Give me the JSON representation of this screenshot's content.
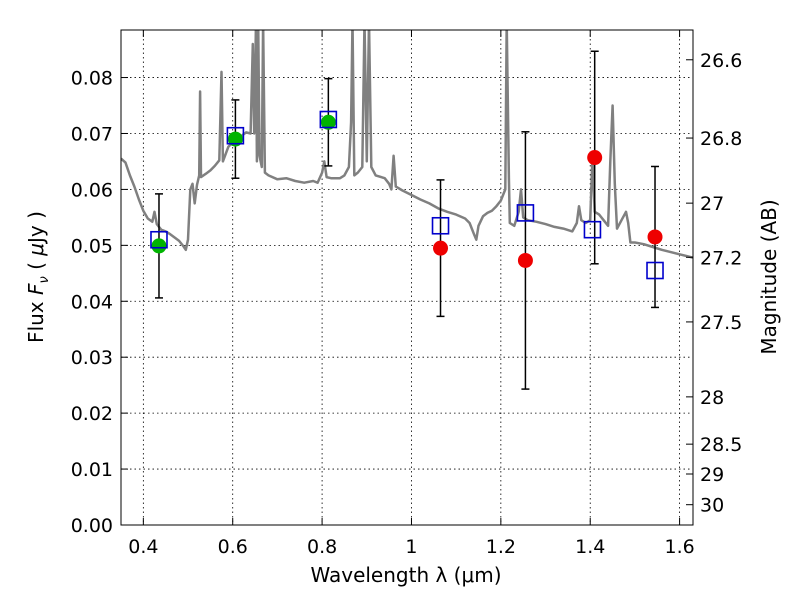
{
  "chart_data": {
    "type": "scatter",
    "title": "",
    "xlabel": "Wavelength  λ (μm)",
    "ylabel": "Flux  F_ν  ( μJy )",
    "ylabel_parts": [
      "Flux  ",
      "F",
      "ν",
      "  ( ",
      "μ",
      "Jy )"
    ],
    "y2label": "Magnitude (AB)",
    "xlim": [
      0.35,
      1.63
    ],
    "ylim": [
      0.0,
      0.0885
    ],
    "x_ticks": [
      "0.4",
      "0.6",
      "0.8",
      "1",
      "1.2",
      "1.4",
      "1.6"
    ],
    "y_ticks": [
      "0.00",
      "0.01",
      "0.02",
      "0.03",
      "0.04",
      "0.05",
      "0.06",
      "0.07",
      "0.08"
    ],
    "y2_ticks": [
      "26.6",
      "26.8",
      "27",
      "27.2",
      "27.5",
      "28",
      "28.5",
      "29",
      "30"
    ],
    "grid": true,
    "colors": {
      "model_line": "#808080",
      "detection_point": "#00b400",
      "upper_limit_point": "#ee0000",
      "model_square": "#0000cc",
      "error_bar": "#000000"
    },
    "series": [
      {
        "marker": "circle",
        "color_key": "detection_point",
        "points": [
          {
            "x": 0.435,
            "y": 0.0499,
            "err": 0.0093
          },
          {
            "x": 0.606,
            "y": 0.069,
            "err": 0.007
          },
          {
            "x": 0.814,
            "y": 0.072,
            "err": 0.0078
          }
        ]
      },
      {
        "marker": "circle",
        "color_key": "upper_limit_point",
        "points": [
          {
            "x": 1.065,
            "y": 0.0495,
            "err": 0.0122
          },
          {
            "x": 1.255,
            "y": 0.0473,
            "err": 0.023
          },
          {
            "x": 1.41,
            "y": 0.0657,
            "err": 0.019
          },
          {
            "x": 1.545,
            "y": 0.0515,
            "err": 0.0126
          }
        ]
      },
      {
        "marker": "square",
        "color_key": "model_square",
        "points": [
          {
            "x": 0.435,
            "y": 0.051
          },
          {
            "x": 0.606,
            "y": 0.0696
          },
          {
            "x": 0.814,
            "y": 0.0725
          },
          {
            "x": 1.065,
            "y": 0.0535
          },
          {
            "x": 1.255,
            "y": 0.0558
          },
          {
            "x": 1.405,
            "y": 0.0528
          },
          {
            "x": 1.545,
            "y": 0.0455
          }
        ]
      },
      {
        "marker": "line",
        "color_key": "model_line",
        "points": [
          [
            0.35,
            0.0655
          ],
          [
            0.36,
            0.0648
          ],
          [
            0.37,
            0.0625
          ],
          [
            0.38,
            0.0605
          ],
          [
            0.39,
            0.0582
          ],
          [
            0.4,
            0.0562
          ],
          [
            0.41,
            0.0548
          ],
          [
            0.42,
            0.0542
          ],
          [
            0.425,
            0.056
          ],
          [
            0.43,
            0.0538
          ],
          [
            0.44,
            0.0528
          ],
          [
            0.45,
            0.0525
          ],
          [
            0.46,
            0.052
          ],
          [
            0.47,
            0.0514
          ],
          [
            0.48,
            0.0508
          ],
          [
            0.49,
            0.0498
          ],
          [
            0.495,
            0.0492
          ],
          [
            0.5,
            0.051
          ],
          [
            0.505,
            0.06
          ],
          [
            0.51,
            0.061
          ],
          [
            0.515,
            0.0575
          ],
          [
            0.52,
            0.0608
          ],
          [
            0.525,
            0.0625
          ],
          [
            0.527,
            0.0775
          ],
          [
            0.529,
            0.0622
          ],
          [
            0.54,
            0.0628
          ],
          [
            0.55,
            0.0634
          ],
          [
            0.56,
            0.0642
          ],
          [
            0.57,
            0.0652
          ],
          [
            0.575,
            0.081
          ],
          [
            0.578,
            0.065
          ],
          [
            0.59,
            0.0676
          ],
          [
            0.6,
            0.0684
          ],
          [
            0.61,
            0.069
          ],
          [
            0.62,
            0.0696
          ],
          [
            0.63,
            0.0702
          ],
          [
            0.64,
            0.07
          ],
          [
            0.645,
            0.086
          ],
          [
            0.648,
            0.07
          ],
          [
            0.652,
            0.09
          ],
          [
            0.654,
            0.065
          ],
          [
            0.657,
            0.09
          ],
          [
            0.66,
            0.066
          ],
          [
            0.665,
            0.064
          ],
          [
            0.668,
            0.09
          ],
          [
            0.672,
            0.063
          ],
          [
            0.68,
            0.0625
          ],
          [
            0.7,
            0.0618
          ],
          [
            0.72,
            0.062
          ],
          [
            0.74,
            0.0615
          ],
          [
            0.76,
            0.0612
          ],
          [
            0.78,
            0.0615
          ],
          [
            0.79,
            0.0612
          ],
          [
            0.8,
            0.063
          ],
          [
            0.805,
            0.065
          ],
          [
            0.81,
            0.0622
          ],
          [
            0.82,
            0.062
          ],
          [
            0.84,
            0.062
          ],
          [
            0.85,
            0.0625
          ],
          [
            0.86,
            0.064
          ],
          [
            0.865,
            0.072
          ],
          [
            0.868,
            0.09
          ],
          [
            0.872,
            0.0625
          ],
          [
            0.88,
            0.063
          ],
          [
            0.89,
            0.064
          ],
          [
            0.895,
            0.09
          ],
          [
            0.9,
            0.065
          ],
          [
            0.905,
            0.09
          ],
          [
            0.91,
            0.064
          ],
          [
            0.92,
            0.0625
          ],
          [
            0.94,
            0.062
          ],
          [
            0.95,
            0.061
          ],
          [
            0.955,
            0.06
          ],
          [
            0.96,
            0.066
          ],
          [
            0.965,
            0.0605
          ],
          [
            0.98,
            0.0598
          ],
          [
            1.0,
            0.059
          ],
          [
            1.02,
            0.0582
          ],
          [
            1.04,
            0.0575
          ],
          [
            1.06,
            0.0566
          ],
          [
            1.08,
            0.056
          ],
          [
            1.1,
            0.0555
          ],
          [
            1.12,
            0.0548
          ],
          [
            1.13,
            0.054
          ],
          [
            1.14,
            0.052
          ],
          [
            1.145,
            0.051
          ],
          [
            1.15,
            0.0535
          ],
          [
            1.16,
            0.0552
          ],
          [
            1.17,
            0.0558
          ],
          [
            1.18,
            0.0562
          ],
          [
            1.19,
            0.057
          ],
          [
            1.2,
            0.058
          ],
          [
            1.21,
            0.06
          ],
          [
            1.213,
            0.09
          ],
          [
            1.218,
            0.062
          ],
          [
            1.22,
            0.054
          ],
          [
            1.23,
            0.0535
          ],
          [
            1.24,
            0.056
          ],
          [
            1.245,
            0.06
          ],
          [
            1.25,
            0.055
          ],
          [
            1.26,
            0.0545
          ],
          [
            1.28,
            0.0542
          ],
          [
            1.3,
            0.0538
          ],
          [
            1.32,
            0.0533
          ],
          [
            1.34,
            0.053
          ],
          [
            1.36,
            0.0525
          ],
          [
            1.37,
            0.054
          ],
          [
            1.375,
            0.057
          ],
          [
            1.38,
            0.0545
          ],
          [
            1.39,
            0.054
          ],
          [
            1.4,
            0.0545
          ],
          [
            1.405,
            0.066
          ],
          [
            1.41,
            0.056
          ],
          [
            1.42,
            0.0555
          ],
          [
            1.43,
            0.0545
          ],
          [
            1.44,
            0.0535
          ],
          [
            1.445,
            0.065
          ],
          [
            1.45,
            0.075
          ],
          [
            1.455,
            0.061
          ],
          [
            1.46,
            0.053
          ],
          [
            1.47,
            0.0545
          ],
          [
            1.48,
            0.056
          ],
          [
            1.485,
            0.054
          ],
          [
            1.49,
            0.0505
          ],
          [
            1.5,
            0.0505
          ],
          [
            1.52,
            0.0502
          ],
          [
            1.54,
            0.0497
          ],
          [
            1.56,
            0.0492
          ],
          [
            1.58,
            0.0488
          ],
          [
            1.6,
            0.0484
          ],
          [
            1.63,
            0.0478
          ]
        ]
      }
    ]
  }
}
